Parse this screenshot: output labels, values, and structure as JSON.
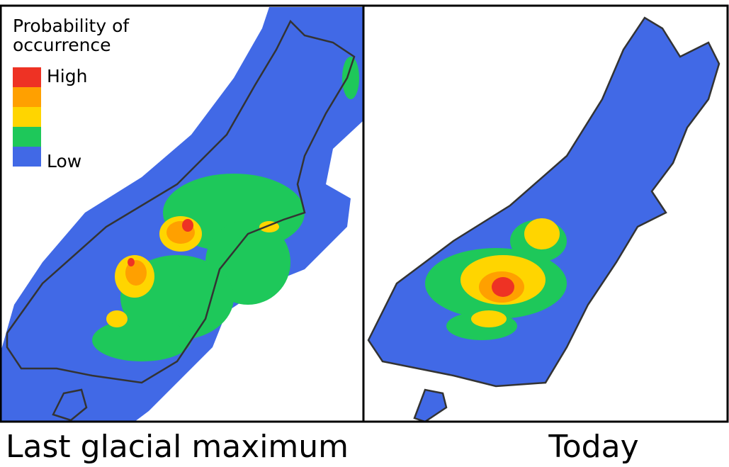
{
  "legend": {
    "title_lines": [
      "Probability of",
      "occurrence"
    ],
    "high": "High",
    "low": "Low",
    "colors": [
      "#ee3224",
      "#ffa000",
      "#ffd500",
      "#1ec85a",
      "#4169e6"
    ]
  },
  "panels": [
    {
      "caption": "Last glacial maximum"
    },
    {
      "caption": "Today"
    }
  ]
}
